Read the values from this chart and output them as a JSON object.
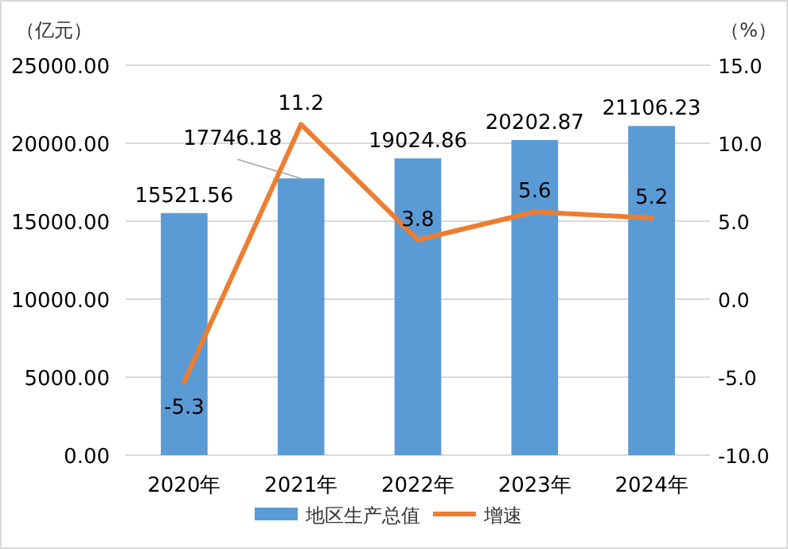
{
  "chart_data": {
    "type": "bar",
    "ylabel": "（亿元）",
    "y2label": "（%）",
    "categories": [
      "2020年",
      "2021年",
      "2022年",
      "2023年",
      "2024年"
    ],
    "series": [
      {
        "name": "地区生产总值",
        "color": "#5b9bd5",
        "values": [
          15521.56,
          17746.18,
          19024.86,
          20202.87,
          21106.23
        ]
      },
      {
        "name": "增速",
        "type": "line",
        "axis": "y2",
        "color": "#ed7d31",
        "values": [
          -5.3,
          11.2,
          3.8,
          5.6,
          5.2
        ]
      }
    ],
    "ylim": [
      0,
      25000
    ],
    "yticks": [
      {
        "value": 0,
        "label": "0.00"
      },
      {
        "value": 5000,
        "label": "5000.00"
      },
      {
        "value": 10000,
        "label": "10000.00"
      },
      {
        "value": 15000,
        "label": "15000.00"
      },
      {
        "value": 20000,
        "label": "20000.00"
      },
      {
        "value": 25000,
        "label": "25000.00"
      }
    ],
    "y2lim": [
      -10,
      15
    ],
    "y2ticks": [
      {
        "value": -10,
        "label": "-10.0"
      },
      {
        "value": -5,
        "label": "-5.0"
      },
      {
        "value": 0,
        "label": "0.0"
      },
      {
        "value": 5,
        "label": "5.0"
      },
      {
        "value": 10,
        "label": "10.0"
      },
      {
        "value": 15,
        "label": "15.0"
      }
    ],
    "data_labels": true,
    "grid": "y",
    "legend": "bottom",
    "marker": "none",
    "line_style": "solid"
  }
}
